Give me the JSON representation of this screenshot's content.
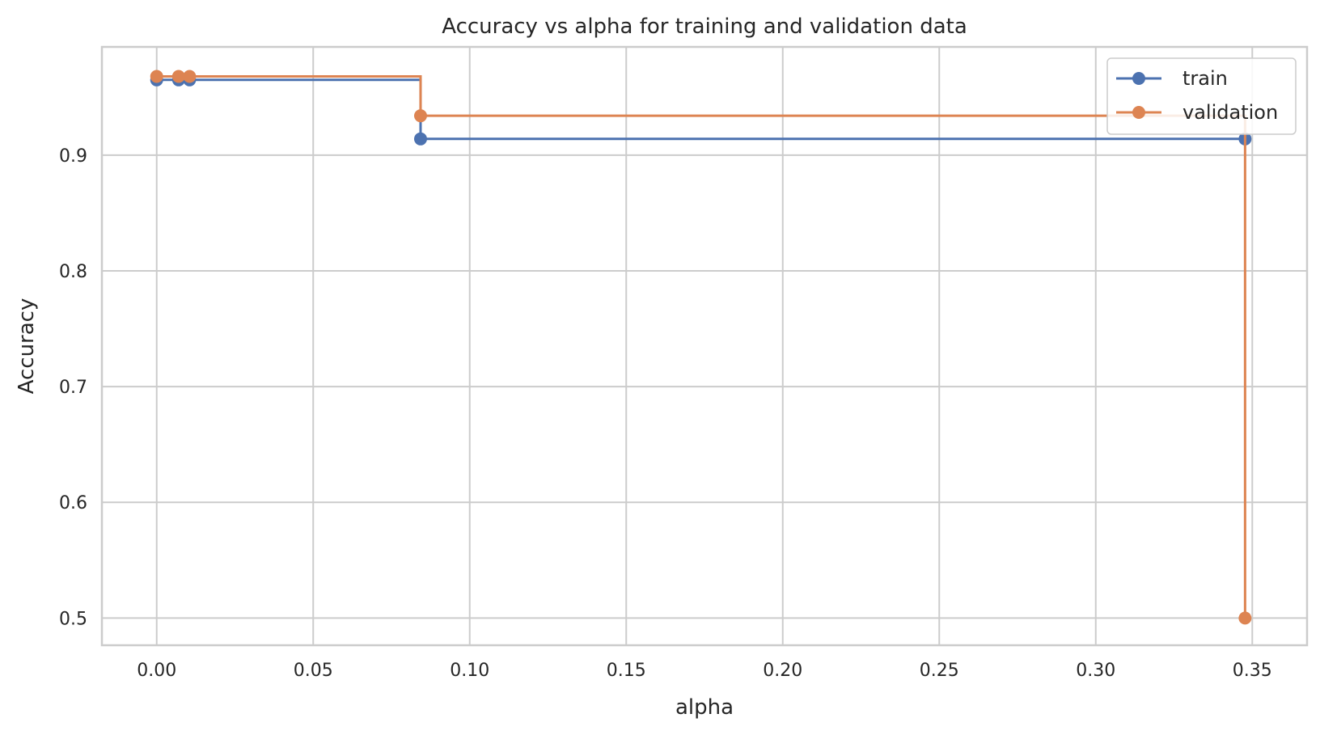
{
  "chart_data": {
    "type": "line",
    "drawstyle": "steps-post",
    "title": "Accuracy vs alpha for training and validation data",
    "xlabel": "alpha",
    "ylabel": "Accuracy",
    "xlim": [
      -0.0175,
      0.3675
    ],
    "ylim": [
      0.4765,
      0.9935
    ],
    "xticks": [
      0.0,
      0.05,
      0.1,
      0.15,
      0.2,
      0.25,
      0.3,
      0.35
    ],
    "xtick_labels": [
      "0.00",
      "0.05",
      "0.10",
      "0.15",
      "0.20",
      "0.25",
      "0.30",
      "0.35"
    ],
    "yticks": [
      0.5,
      0.6,
      0.7,
      0.8,
      0.9
    ],
    "ytick_labels": [
      "0.5",
      "0.6",
      "0.7",
      "0.8",
      "0.9"
    ],
    "grid": true,
    "legend_position": "top-right",
    "series": [
      {
        "name": "train",
        "color": "#4c72b0",
        "x": [
          0.0,
          0.007,
          0.0105,
          0.0843,
          0.3477
        ],
        "y": [
          0.965,
          0.965,
          0.965,
          0.914,
          0.914
        ]
      },
      {
        "name": "validation",
        "color": "#dd8452",
        "x": [
          0.0,
          0.007,
          0.0105,
          0.0843,
          0.3477
        ],
        "y": [
          0.968,
          0.968,
          0.968,
          0.934,
          0.5
        ]
      }
    ]
  }
}
